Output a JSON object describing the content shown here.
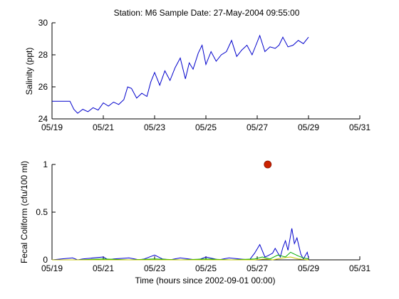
{
  "figure_title": "Station: M6  Sample Date: 27-May-2004 09:55:00",
  "colors": {
    "salinity_line": "#0000cc",
    "coliform_series_1": "#0000cc",
    "coliform_series_2": "#00aa00",
    "coliform_series_3": "#c8c800",
    "sample_marker": "#cc2200",
    "axes": "#000000"
  },
  "chart_data": [
    {
      "type": "line",
      "title": "Station: M6  Sample Date: 27-May-2004 09:55:00",
      "xlabel": "",
      "ylabel": "Salinity (ppt)",
      "xlim": [
        19,
        31
      ],
      "ylim": [
        24,
        30
      ],
      "x_ticks": [
        19,
        21,
        23,
        25,
        27,
        29,
        31
      ],
      "x_tick_labels": [
        "05/19",
        "05/21",
        "05/23",
        "05/25",
        "05/27",
        "05/29",
        "05/31"
      ],
      "y_ticks": [
        24,
        26,
        28,
        30
      ],
      "y_tick_labels": [
        "24",
        "26",
        "28",
        "30"
      ],
      "grid": false,
      "series": [
        {
          "x": [
            19.0,
            19.7,
            19.85,
            20.0,
            20.2,
            20.4,
            20.6,
            20.8,
            21.0,
            21.2,
            21.4,
            21.6,
            21.8,
            21.95,
            22.1,
            22.3,
            22.5,
            22.7,
            22.85,
            23.0,
            23.2,
            23.4,
            23.6,
            23.8,
            24.0,
            24.2,
            24.35,
            24.5,
            24.7,
            24.85,
            25.0,
            25.2,
            25.4,
            25.6,
            25.8,
            26.0,
            26.2,
            26.4,
            26.6,
            26.8,
            26.95,
            27.1,
            27.3,
            27.5,
            27.7,
            27.85,
            28.0,
            28.2,
            28.4,
            28.6,
            28.8,
            29.0
          ],
          "y": [
            25.1,
            25.1,
            24.6,
            24.35,
            24.6,
            24.45,
            24.7,
            24.55,
            25.0,
            24.8,
            25.05,
            24.9,
            25.2,
            26.0,
            25.9,
            25.3,
            25.6,
            25.4,
            26.3,
            26.9,
            26.1,
            27.0,
            26.4,
            27.2,
            27.8,
            26.5,
            27.5,
            27.1,
            28.1,
            28.6,
            27.4,
            28.2,
            27.6,
            28.0,
            28.2,
            28.9,
            27.9,
            28.3,
            28.6,
            28.0,
            28.6,
            29.2,
            28.2,
            28.5,
            28.4,
            28.6,
            29.1,
            28.5,
            28.6,
            28.9,
            28.7,
            29.1
          ]
        }
      ]
    },
    {
      "type": "line",
      "title": "",
      "xlabel": "Time (hours since 2002-09-01 00:00)",
      "ylabel": "Fecal Coliform (cfu/100 ml)",
      "xlim": [
        19,
        31
      ],
      "ylim": [
        0,
        1
      ],
      "x_ticks": [
        19,
        21,
        23,
        25,
        27,
        29,
        31
      ],
      "x_tick_labels": [
        "05/19",
        "05/21",
        "05/23",
        "05/25",
        "05/27",
        "05/29",
        "05/31"
      ],
      "y_ticks": [
        0,
        0.5,
        1
      ],
      "y_tick_labels": [
        "0",
        "0.5",
        "1"
      ],
      "grid": false,
      "series": [
        {
          "color_key": "coliform_series_1",
          "x": [
            19.0,
            19.8,
            20.0,
            20.2,
            21.0,
            21.2,
            21.4,
            22.0,
            22.4,
            22.6,
            23.0,
            23.3,
            23.6,
            24.0,
            24.6,
            24.8,
            25.0,
            25.5,
            25.9,
            26.3,
            26.7,
            26.9,
            27.1,
            27.3,
            27.4,
            27.6,
            27.7,
            27.9,
            28.0,
            28.1,
            28.2,
            28.35,
            28.45,
            28.55,
            28.7,
            28.8,
            28.95,
            29.0
          ],
          "y": [
            0.0,
            0.02,
            0.0,
            0.01,
            0.03,
            0.0,
            0.01,
            0.02,
            0.0,
            0.01,
            0.05,
            0.01,
            0.0,
            0.02,
            0.0,
            0.01,
            0.03,
            0.0,
            0.02,
            0.01,
            0.0,
            0.07,
            0.16,
            0.03,
            0.04,
            0.07,
            0.12,
            0.03,
            0.13,
            0.2,
            0.1,
            0.33,
            0.17,
            0.23,
            0.06,
            0.01,
            0.08,
            0.02
          ]
        },
        {
          "color_key": "coliform_series_2",
          "x": [
            19.0,
            20.0,
            21.0,
            22.0,
            23.0,
            24.0,
            25.0,
            26.0,
            26.9,
            27.2,
            27.5,
            27.8,
            28.1,
            28.3,
            28.6,
            28.8,
            29.0
          ],
          "y": [
            0.0,
            0.0,
            0.01,
            0.0,
            0.01,
            0.0,
            0.01,
            0.0,
            0.01,
            0.03,
            0.01,
            0.05,
            0.03,
            0.08,
            0.04,
            0.02,
            0.01
          ]
        },
        {
          "color_key": "coliform_series_3",
          "x": [
            19.0,
            21.0,
            23.0,
            25.0,
            26.9,
            27.3,
            27.6,
            28.0,
            28.3,
            28.6,
            29.0
          ],
          "y": [
            0.0,
            0.0,
            0.0,
            0.0,
            0.0,
            0.01,
            0.0,
            0.02,
            0.03,
            0.01,
            0.0
          ]
        }
      ],
      "markers": [
        {
          "name": "sample",
          "x": 27.41,
          "y": 1.0
        }
      ]
    }
  ]
}
